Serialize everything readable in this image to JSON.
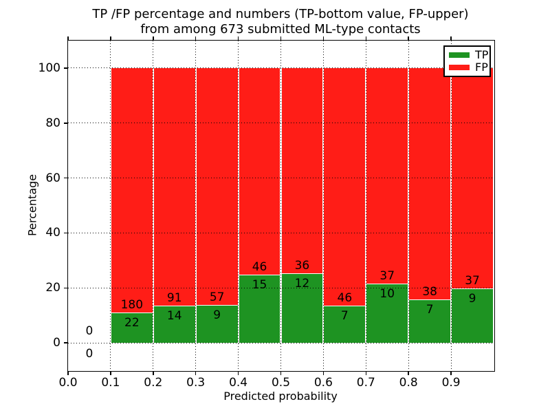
{
  "chart_data": {
    "type": "bar",
    "stacked": true,
    "units": "percent",
    "title_line1": "TP /FP percentage and numbers (TP-bottom value, FP-upper)",
    "title_line2": "from among 673 submitted ML-type contacts",
    "xlabel": "Predicted probability",
    "ylabel": "Percentage",
    "total_contacts": 673,
    "xlim": [
      0.0,
      1.0
    ],
    "ylim": [
      -10,
      110
    ],
    "x_ticks": [
      "0.0",
      "0.1",
      "0.2",
      "0.3",
      "0.4",
      "0.5",
      "0.6",
      "0.7",
      "0.8",
      "0.9"
    ],
    "y_ticks": [
      "0",
      "20",
      "40",
      "60",
      "80",
      "100"
    ],
    "grid": "dotted",
    "colors": {
      "tp": "#1e9322",
      "fp": "#ff1d17"
    },
    "legend": {
      "position": "upper right",
      "entries": [
        {
          "label": "TP",
          "color": "#1e9322"
        },
        {
          "label": "FP",
          "color": "#ff1d17"
        }
      ]
    },
    "bins": [
      {
        "range": [
          0.0,
          0.1
        ],
        "tp": 0,
        "fp": 0
      },
      {
        "range": [
          0.1,
          0.2
        ],
        "tp": 22,
        "fp": 180
      },
      {
        "range": [
          0.2,
          0.3
        ],
        "tp": 14,
        "fp": 91
      },
      {
        "range": [
          0.3,
          0.4
        ],
        "tp": 9,
        "fp": 57
      },
      {
        "range": [
          0.4,
          0.5
        ],
        "tp": 15,
        "fp": 46
      },
      {
        "range": [
          0.5,
          0.6
        ],
        "tp": 12,
        "fp": 36
      },
      {
        "range": [
          0.6,
          0.7
        ],
        "tp": 7,
        "fp": 46
      },
      {
        "range": [
          0.7,
          0.8
        ],
        "tp": 10,
        "fp": 37
      },
      {
        "range": [
          0.8,
          0.9
        ],
        "tp": 7,
        "fp": 38
      },
      {
        "range": [
          0.9,
          1.0
        ],
        "tp": 9,
        "fp": 37
      }
    ]
  }
}
